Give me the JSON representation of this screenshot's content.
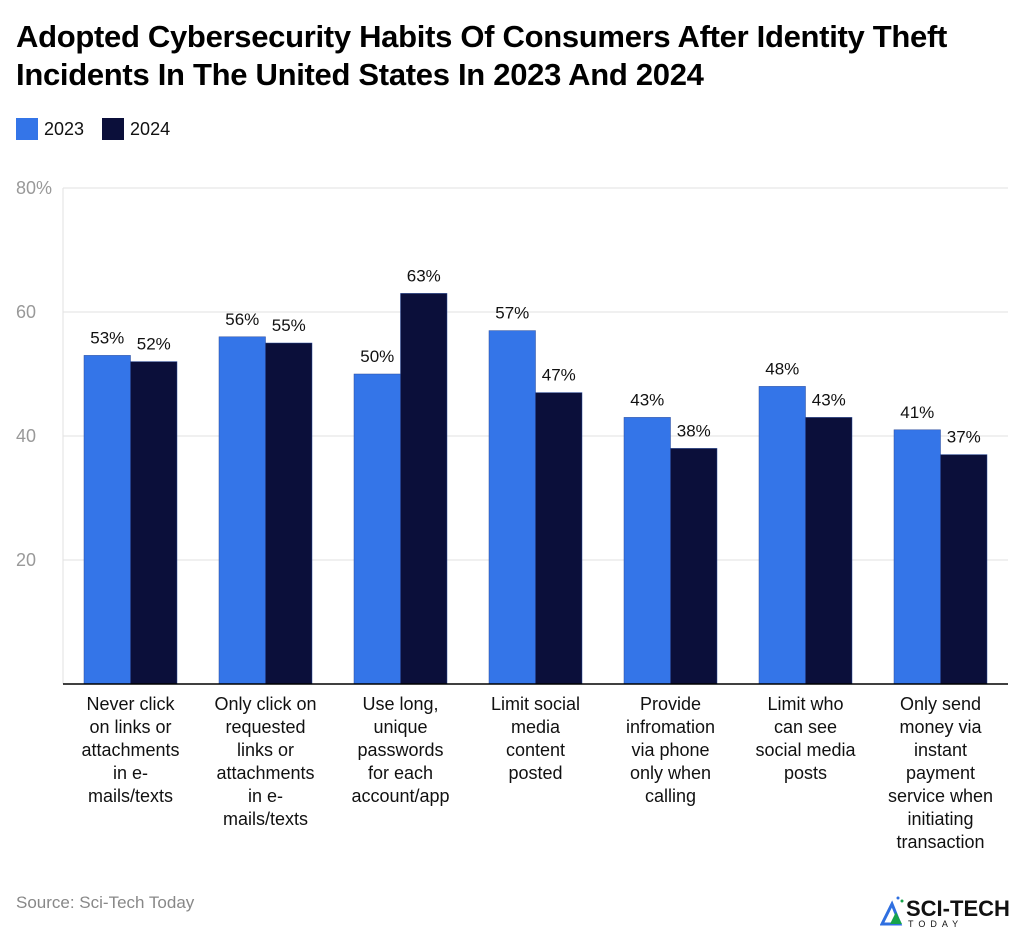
{
  "chart_data": {
    "type": "bar",
    "title": "Adopted Cybersecurity Habits Of Consumers After Identity Theft Incidents In The United States In 2023 And 2024",
    "categories": [
      [
        "Never click",
        "on links or",
        "attachments",
        "in e-",
        "mails/texts"
      ],
      [
        "Only click on",
        "requested",
        "links or",
        "attachments",
        "in e-",
        "mails/texts"
      ],
      [
        "Use long,",
        "unique",
        "passwords",
        "for each",
        "account/app"
      ],
      [
        "Limit social",
        "media",
        "content",
        "posted"
      ],
      [
        "Provide",
        "infromation",
        "via phone",
        "only when",
        "calling"
      ],
      [
        "Limit who",
        "can see",
        "social media",
        "posts"
      ],
      [
        "Only send",
        "money via",
        "instant",
        "payment",
        "service when",
        "initiating",
        "transaction"
      ]
    ],
    "series": [
      {
        "name": "2023",
        "color": "#3475e8",
        "values": [
          53,
          56,
          50,
          57,
          43,
          48,
          41
        ],
        "labels": [
          "53%",
          "56%",
          "50%",
          "57%",
          "43%",
          "48%",
          "41%"
        ]
      },
      {
        "name": "2024",
        "color": "#0b0f3a",
        "values": [
          52,
          55,
          63,
          47,
          38,
          43,
          37
        ],
        "labels": [
          "52%",
          "55%",
          "63%",
          "47%",
          "38%",
          "43%",
          "37%"
        ]
      }
    ],
    "ylim": [
      0,
      80
    ],
    "yticks": [
      20,
      40,
      60,
      80
    ],
    "ytick_labels": [
      "20",
      "40",
      "60",
      "80%"
    ],
    "grid": true,
    "legend_position": "top-left",
    "xlabel": "",
    "ylabel": ""
  },
  "source": "Source: Sci-Tech Today",
  "logo": {
    "text": "SCI-TECH",
    "subtext": "TODAY"
  }
}
